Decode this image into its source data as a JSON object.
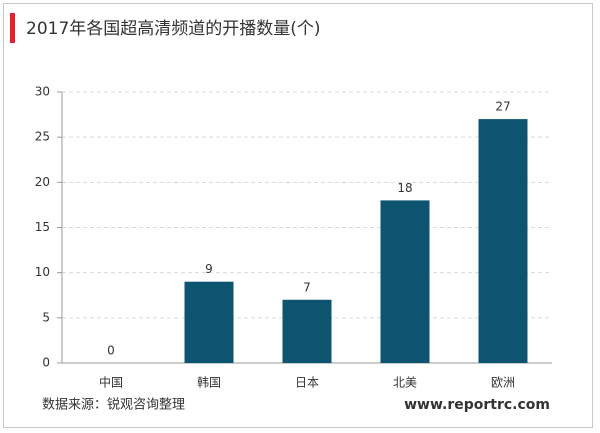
{
  "chart_data": {
    "type": "bar",
    "title": "2017年各国超高清频道的开播数量(个)",
    "categories": [
      "中国",
      "韩国",
      "日本",
      "北美",
      "欧洲"
    ],
    "values": [
      0,
      9,
      7,
      18,
      27
    ],
    "color": "#0d5470",
    "ylim": [
      0,
      30
    ],
    "yticks": [
      0,
      5,
      10,
      15,
      20,
      25,
      30
    ],
    "grid": true,
    "source": "数据来源：锐观咨询整理",
    "website": "www.reportrc.com"
  }
}
